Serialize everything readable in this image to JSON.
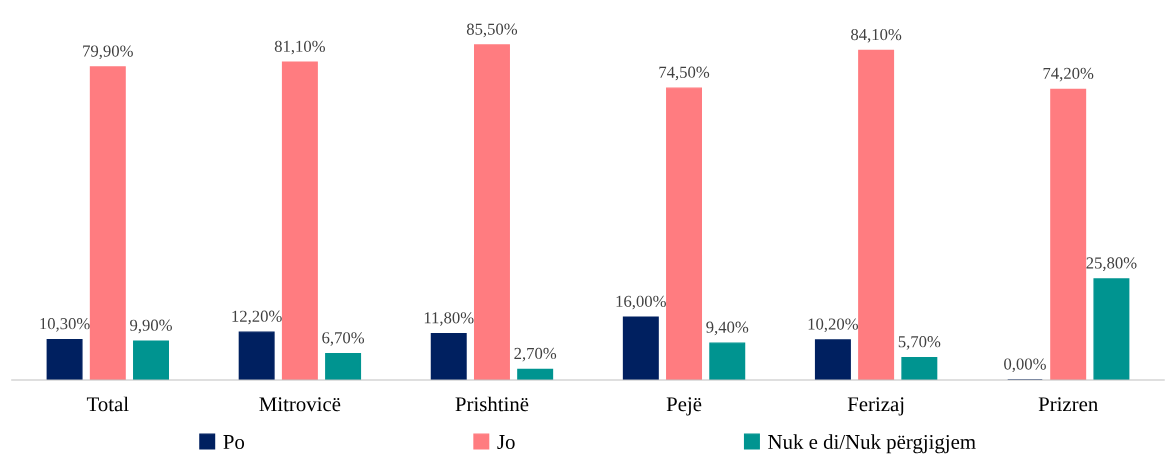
{
  "chart_data": {
    "type": "bar",
    "categories": [
      "Total",
      "Mitrovicë",
      "Prishtinë",
      "Pejë",
      "Ferizaj",
      "Prizren"
    ],
    "series": [
      {
        "name": "Po",
        "color": "#002060",
        "values": [
          10.3,
          12.2,
          11.8,
          16.0,
          10.2,
          0.0
        ],
        "value_labels": [
          "10,30%",
          "12,20%",
          "11,80%",
          "16,00%",
          "10,20%",
          "0,00%"
        ]
      },
      {
        "name": "Jo",
        "color": "#ff7c80",
        "values": [
          79.9,
          81.1,
          85.5,
          74.5,
          84.1,
          74.2
        ],
        "value_labels": [
          "79,90%",
          "81,10%",
          "85,50%",
          "74,50%",
          "84,10%",
          "74,20%"
        ]
      },
      {
        "name": "Nuk e di/Nuk përgjigjem",
        "color": "#009490",
        "values": [
          9.9,
          6.7,
          2.7,
          9.4,
          5.7,
          25.8
        ],
        "value_labels": [
          "9,90%",
          "6,70%",
          "2,70%",
          "9,40%",
          "5,70%",
          "25,80%"
        ]
      }
    ],
    "legend": "bottom",
    "grid": false,
    "tick_labels": "x"
  }
}
